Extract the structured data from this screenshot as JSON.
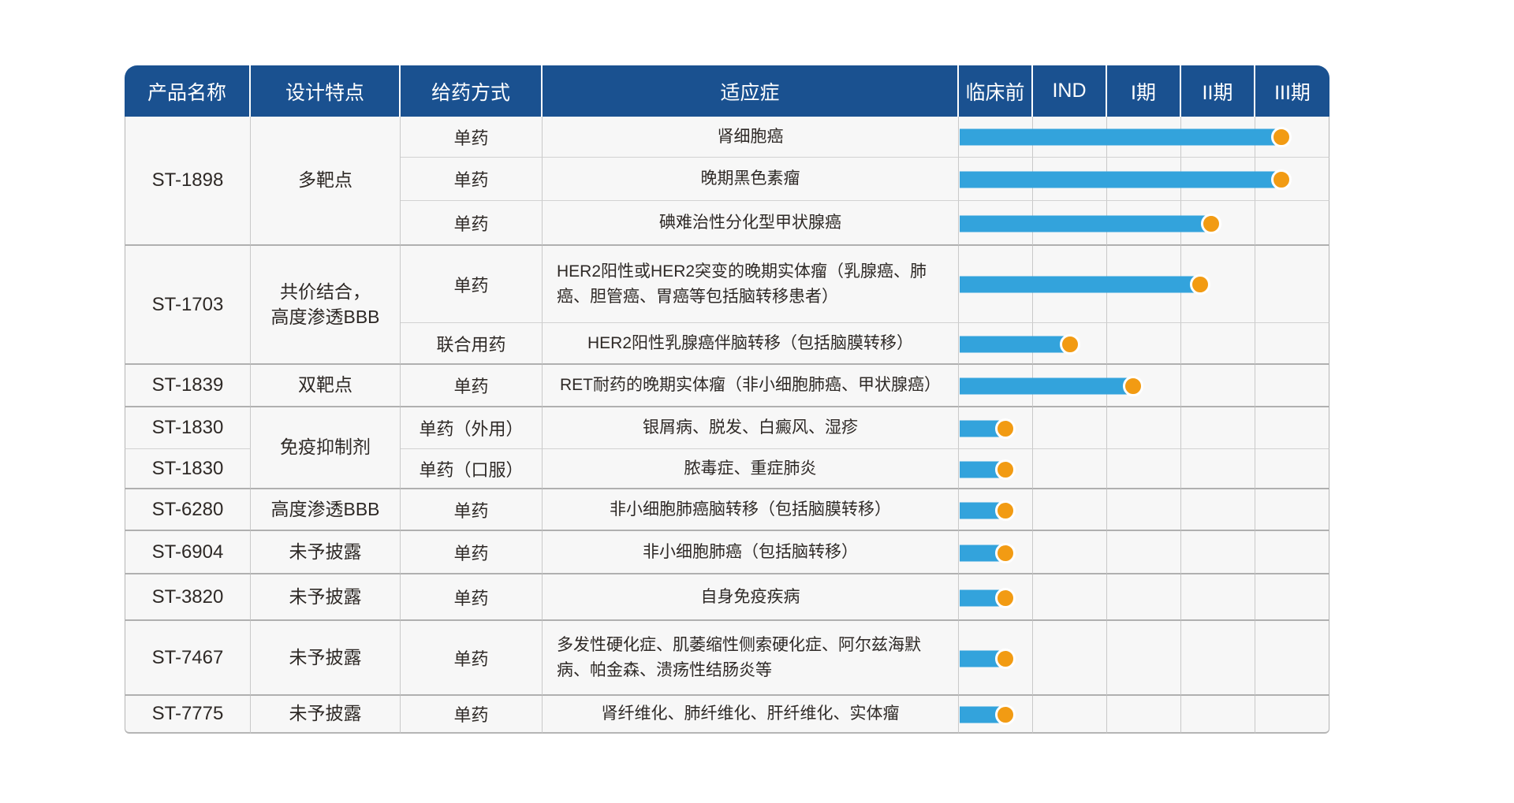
{
  "colors": {
    "header_bg": "#1a5190",
    "bar_blue": "#33a3dc",
    "dot_orange": "#f29b13",
    "row_bg": "#f7f7f7",
    "grid_line": "#c9c9c9",
    "group_line": "#b0b0b0",
    "header_text": "#ffffff",
    "body_text": "#2e2926"
  },
  "chart_data": {
    "type": "table",
    "title": "",
    "columns": [
      "产品名称",
      "设计特点",
      "给药方式",
      "适应症",
      "临床前",
      "IND",
      "I期",
      "II期",
      "III期"
    ],
    "phase_columns": [
      "临床前",
      "IND",
      "I期",
      "II期",
      "III期"
    ],
    "progress_note": "progress_pct = bar end position as % of the 5-phase track (临床前→III期)",
    "rows": [
      {
        "product": "ST-1898",
        "design": "多靶点",
        "method": "单药",
        "indication": "肾细胞癌",
        "progress_pct": 87
      },
      {
        "method": "单药",
        "indication": "晚期黑色素瘤",
        "progress_pct": 87
      },
      {
        "method": "单药",
        "indication": "碘难治性分化型甲状腺癌",
        "progress_pct": 68
      },
      {
        "product": "ST-1703",
        "design": "共价结合，\n高度渗透BBB",
        "method": "单药",
        "indication": "HER2阳性或HER2突变的晚期实体瘤（乳腺癌、肺癌、胆管癌、胃癌等包括脑转移患者）",
        "progress_pct": 65
      },
      {
        "method": "联合用药",
        "indication": "HER2阳性乳腺癌伴脑转移（包括脑膜转移）",
        "progress_pct": 30
      },
      {
        "product": "ST-1839",
        "design": "双靶点",
        "method": "单药",
        "indication": "RET耐药的晚期实体瘤（非小细胞肺癌、甲状腺癌）",
        "progress_pct": 47
      },
      {
        "product": "ST-1830",
        "design": "免疫抑制剂",
        "method": "单药（外用）",
        "indication": "银屑病、脱发、白癜风、湿疹",
        "progress_pct": 12.5
      },
      {
        "product": "ST-1830",
        "method": "单药（口服）",
        "indication": "脓毒症、重症肺炎",
        "progress_pct": 12.5
      },
      {
        "product": "ST-6280",
        "design": "高度渗透BBB",
        "method": "单药",
        "indication": "非小细胞肺癌脑转移（包括脑膜转移）",
        "progress_pct": 12.5
      },
      {
        "product": "ST-6904",
        "design": "未予披露",
        "method": "单药",
        "indication": "非小细胞肺癌（包括脑转移）",
        "progress_pct": 12.5
      },
      {
        "product": "ST-3820",
        "design": "未予披露",
        "method": "单药",
        "indication": "自身免疫疾病",
        "progress_pct": 12.5
      },
      {
        "product": "ST-7467",
        "design": "未予披露",
        "method": "单药",
        "indication": "多发性硬化症、肌萎缩性侧索硬化症、阿尔兹海默病、帕金森、溃疡性结肠炎等",
        "progress_pct": 12.5
      },
      {
        "product": "ST-7775",
        "design": "未予披露",
        "method": "单药",
        "indication": "肾纤维化、肺纤维化、肝纤维化、实体瘤",
        "progress_pct": 12.5
      }
    ]
  }
}
